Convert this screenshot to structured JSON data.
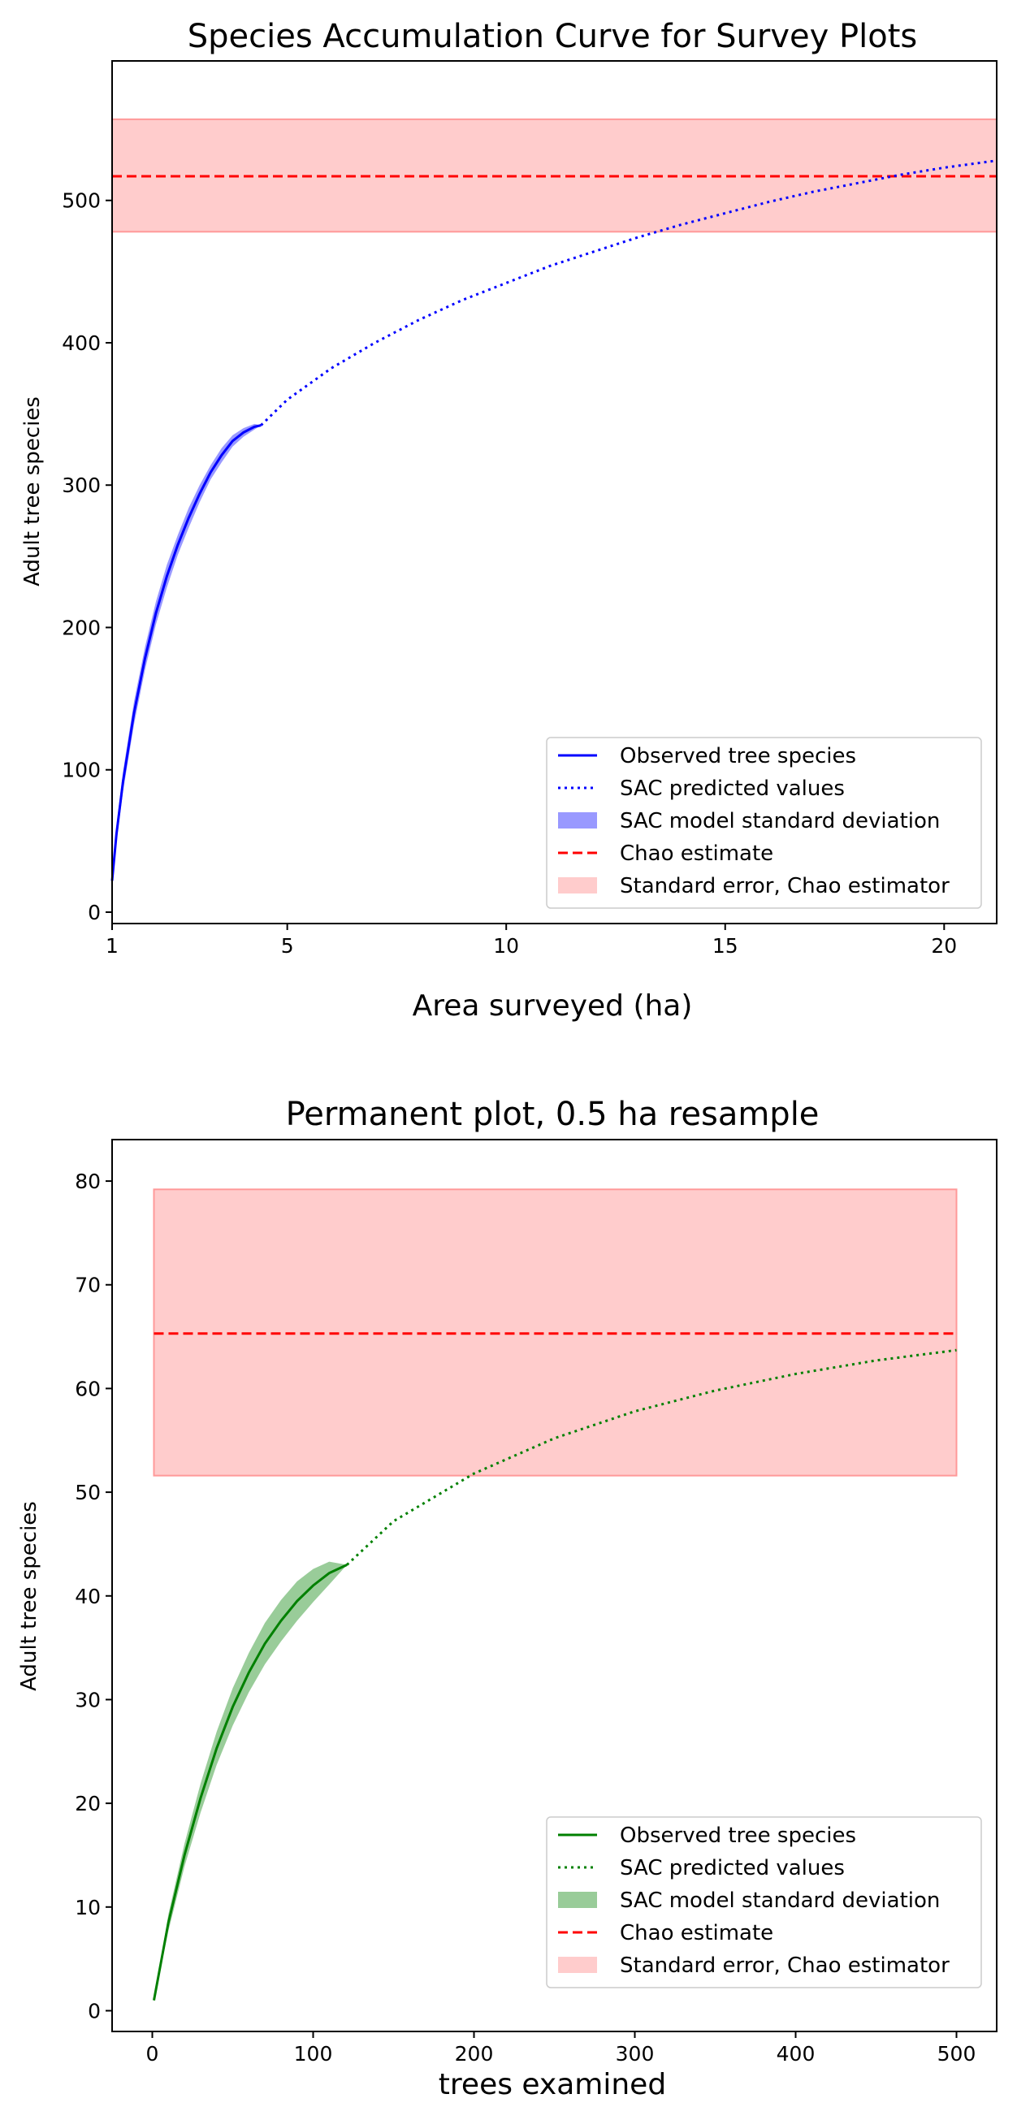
{
  "chart_data": [
    {
      "type": "line",
      "title": "Species Accumulation Curve for Survey Plots",
      "xlabel": "Area surveyed (ha)",
      "ylabel": "Adult tree species",
      "xlim": [
        1,
        21.2
      ],
      "ylim": [
        -8,
        598
      ],
      "xticks": [
        1,
        5,
        10,
        15,
        20
      ],
      "yticks": [
        0,
        100,
        200,
        300,
        400,
        500
      ],
      "grid": false,
      "legend_position": "lower right",
      "colors": {
        "series": "#0000ff",
        "band": "#0000ff",
        "chao": "#ff0000",
        "chao_band": "#ff9999"
      },
      "observed": {
        "x": [
          1.0,
          1.1,
          1.25,
          1.5,
          1.75,
          2.0,
          2.25,
          2.5,
          2.75,
          3.0,
          3.25,
          3.5,
          3.75,
          4.0,
          4.25,
          4.4
        ],
        "y": [
          22,
          55,
          92,
          140,
          178,
          210,
          236,
          258,
          277,
          294,
          309,
          321,
          331,
          337,
          341,
          342
        ],
        "sd": [
          5,
          6,
          7,
          8,
          8,
          8,
          8,
          7,
          7,
          6,
          5,
          5,
          4,
          3,
          2,
          0
        ]
      },
      "predicted": {
        "x": [
          4.4,
          5,
          6,
          7,
          8,
          9,
          10,
          11,
          12,
          13,
          14,
          15,
          16,
          17,
          18,
          19,
          20,
          21.2
        ],
        "y": [
          342,
          360,
          382,
          400,
          416,
          430,
          442,
          454,
          464,
          474,
          483,
          491,
          499,
          506,
          512,
          518,
          523,
          528
        ]
      },
      "chao": {
        "estimate": 517,
        "se_low": 478,
        "se_high": 557
      },
      "legend": [
        "Observed tree species",
        "SAC predicted values",
        "SAC model standard deviation",
        "Chao estimate",
        "Standard error, Chao estimator"
      ]
    },
    {
      "type": "line",
      "title": "Permanent plot, 0.5 ha resample",
      "xlabel": "trees examined",
      "ylabel": "Adult tree species",
      "xlim": [
        -25,
        525
      ],
      "ylim": [
        -2,
        84
      ],
      "xticks": [
        0,
        100,
        200,
        300,
        400,
        500
      ],
      "yticks": [
        0,
        10,
        20,
        30,
        40,
        50,
        60,
        70,
        80
      ],
      "grid": false,
      "legend_position": "lower right",
      "colors": {
        "series": "#008000",
        "band": "#008000",
        "chao": "#ff0000",
        "chao_band": "#ff9999"
      },
      "observed": {
        "x": [
          1,
          10,
          20,
          30,
          40,
          50,
          60,
          70,
          80,
          90,
          100,
          110,
          121
        ],
        "y": [
          1,
          8.5,
          15,
          20.5,
          25.3,
          29.3,
          32.6,
          35.4,
          37.6,
          39.5,
          41,
          42.2,
          43
        ],
        "sd": [
          0,
          0.8,
          1.1,
          1.4,
          1.6,
          1.8,
          1.9,
          2,
          2,
          1.9,
          1.6,
          1.1,
          0
        ]
      },
      "predicted": {
        "x": [
          121,
          150,
          200,
          250,
          300,
          350,
          400,
          450,
          500
        ],
        "y": [
          43,
          47.2,
          51.8,
          55.2,
          57.8,
          59.8,
          61.4,
          62.7,
          63.7
        ]
      },
      "chao": {
        "estimate": 65.3,
        "se_low": 51.6,
        "se_high": 79.2,
        "x_span": [
          1,
          500
        ]
      },
      "legend": [
        "Observed tree species",
        "SAC predicted values",
        "SAC model standard deviation",
        "Chao estimate",
        "Standard error, Chao estimator"
      ]
    }
  ]
}
